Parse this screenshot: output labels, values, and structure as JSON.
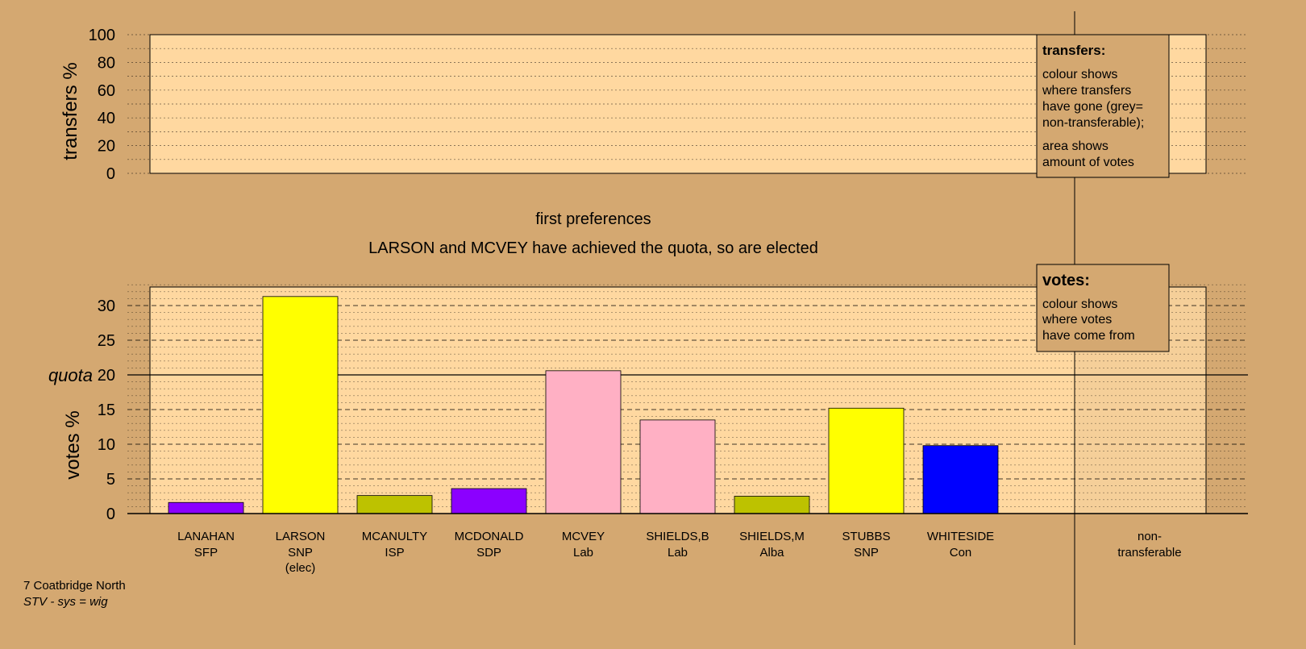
{
  "colors": {
    "background": "#d4a871",
    "plot_area": "#ffd8a0",
    "legend_box": "#d4a871",
    "SFP": "#8b00ff",
    "SNP": "#ffff00",
    "ISP": "#bdc200",
    "SDP": "#8b00ff",
    "Lab": "#ffb0c4",
    "Alba": "#bdc200",
    "Con": "#0000ff"
  },
  "chart_data": [
    {
      "type": "bar",
      "panel": "transfers",
      "ylabel": "transfers %",
      "ylim": [
        0,
        100
      ],
      "ticks": [
        "0",
        "20",
        "40",
        "60",
        "80",
        "100"
      ],
      "tick_values": [
        0,
        20,
        40,
        60,
        80,
        100
      ],
      "series": [],
      "legend": {
        "title": "transfers:",
        "lines1": [
          "colour shows",
          "where transfers",
          "have gone (grey=",
          "non-transferable);"
        ],
        "lines2": [
          "area shows",
          "amount of votes"
        ],
        "placement": "top-right"
      }
    },
    {
      "type": "bar",
      "panel": "votes",
      "title": "first preferences",
      "subtitle": "LARSON and MCVEY have achieved the quota, so are elected",
      "ylabel": "votes %",
      "ylim": [
        0,
        33
      ],
      "ticks": [
        "0",
        "5",
        "10",
        "15",
        "20",
        "25",
        "30"
      ],
      "tick_values": [
        0,
        5,
        10,
        15,
        20,
        25,
        30
      ],
      "quota": 20,
      "quota_label": "quota",
      "categories": [
        {
          "name": "LANAHAN",
          "party": "SFP",
          "note": ""
        },
        {
          "name": "LARSON",
          "party": "SNP",
          "note": "(elec)"
        },
        {
          "name": "MCANULTY",
          "party": "ISP",
          "note": ""
        },
        {
          "name": "MCDONALD",
          "party": "SDP",
          "note": ""
        },
        {
          "name": "MCVEY",
          "party": "Lab",
          "note": ""
        },
        {
          "name": "SHIELDS,B",
          "party": "Lab",
          "note": ""
        },
        {
          "name": "SHIELDS,M",
          "party": "Alba",
          "note": ""
        },
        {
          "name": "STUBBS",
          "party": "SNP",
          "note": ""
        },
        {
          "name": "WHITESIDE",
          "party": "Con",
          "note": ""
        }
      ],
      "values": [
        1.6,
        31.3,
        2.6,
        3.6,
        20.6,
        13.5,
        2.5,
        15.2,
        9.8
      ],
      "nontransferable": {
        "line1": "non-",
        "line2": "transferable",
        "value": 0
      },
      "legend": {
        "title": "votes:",
        "lines": [
          "colour shows",
          "where votes",
          "have come from"
        ],
        "placement": "top-right"
      }
    }
  ],
  "footer": {
    "ward": "7 Coatbridge North",
    "system": "STV - sys = wig"
  }
}
